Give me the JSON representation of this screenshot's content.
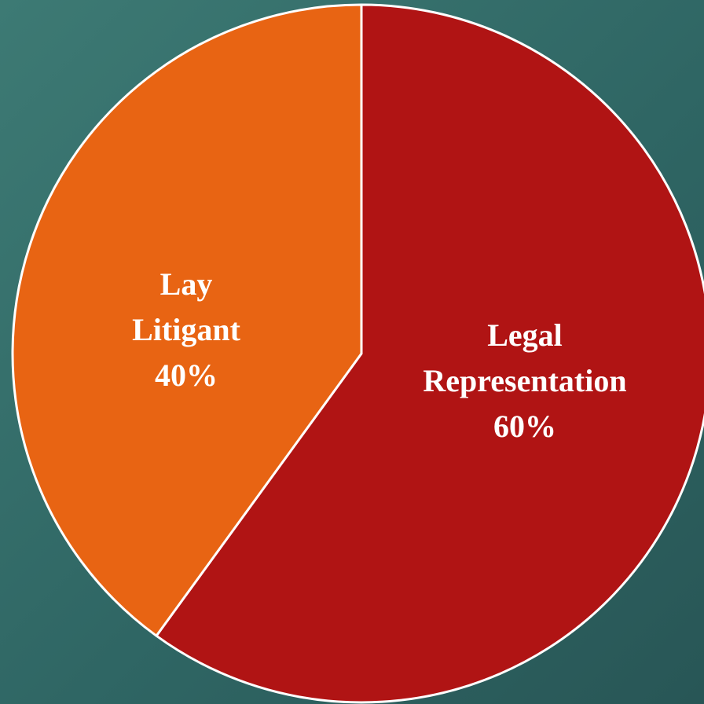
{
  "chart_data": {
    "type": "pie",
    "categories": [
      "Legal Representation",
      "Lay Litigant"
    ],
    "values": [
      60,
      40
    ],
    "value_labels": [
      "60%",
      "40%"
    ],
    "colors": [
      "#b01414",
      "#e86413"
    ]
  }
}
